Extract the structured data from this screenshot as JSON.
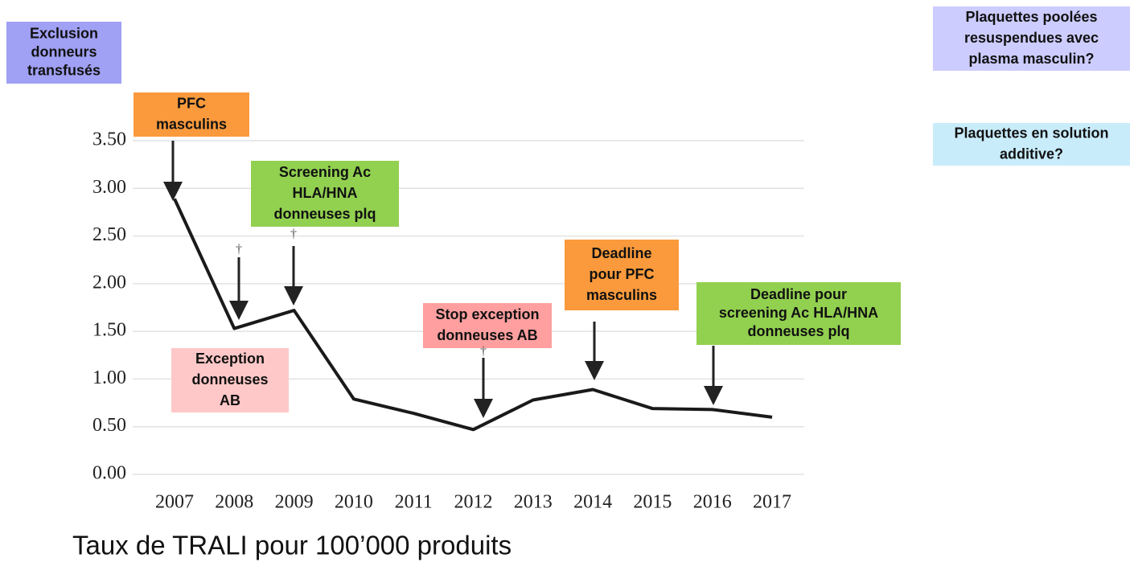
{
  "chart_data": {
    "type": "line",
    "title": "Taux de TRALI pour 100’000 produits",
    "categories": [
      "2007",
      "2008",
      "2009",
      "2010",
      "2011",
      "2012",
      "2013",
      "2014",
      "2015",
      "2016",
      "2017"
    ],
    "series": [
      {
        "color": "#1a1a1a",
        "values": [
          2.89,
          1.53,
          1.72,
          0.79,
          0.64,
          0.47,
          0.78,
          0.89,
          0.69,
          0.68,
          0.6
        ]
      }
    ],
    "ylim": [
      0,
      3.5
    ],
    "yticks": [
      {
        "value": 0,
        "label": "0.00"
      },
      {
        "value": 0.5,
        "label": "0.50"
      },
      {
        "value": 1,
        "label": "1.00"
      },
      {
        "value": 1.5,
        "label": "1.50"
      },
      {
        "value": 2,
        "label": "2.00"
      },
      {
        "value": 2.5,
        "label": "2.50"
      },
      {
        "value": 3,
        "label": "3.00"
      },
      {
        "value": 3.5,
        "label": "3.50"
      }
    ],
    "grid": true,
    "annotations": [
      {
        "lines": [
          "Exclusion",
          "donneurs",
          "transfusés"
        ],
        "color": "#a0a0f4"
      },
      {
        "lines": [
          "PFC",
          "masculins"
        ],
        "color": "#fa9a3c"
      },
      {
        "lines": [
          "Screening  Ac",
          "HLA/HNA",
          "donneuses plq"
        ],
        "color": "#92d050"
      },
      {
        "lines": [
          "Exception",
          "donneuses",
          "AB"
        ],
        "color": "#ffc8c8"
      },
      {
        "lines": [
          "Stop exception",
          "donneuses AB"
        ],
        "color": "#ff9f9f"
      },
      {
        "lines": [
          "Deadline",
          "pour PFC",
          "masculins"
        ],
        "color": "#fa9a3c"
      },
      {
        "lines": [
          "Deadline pour",
          "screening  Ac HLA/HNA",
          "donneuses plq"
        ],
        "color": "#92d050"
      },
      {
        "lines": [
          "Plaquettes poolées",
          "resuspendues avec",
          "plasma masculin?"
        ],
        "color": "#ccccff"
      },
      {
        "lines": [
          "Plaquettes en solution",
          "additive?"
        ],
        "color": "#c9ecfb"
      }
    ],
    "markers": [
      "†",
      "†",
      "†"
    ]
  }
}
